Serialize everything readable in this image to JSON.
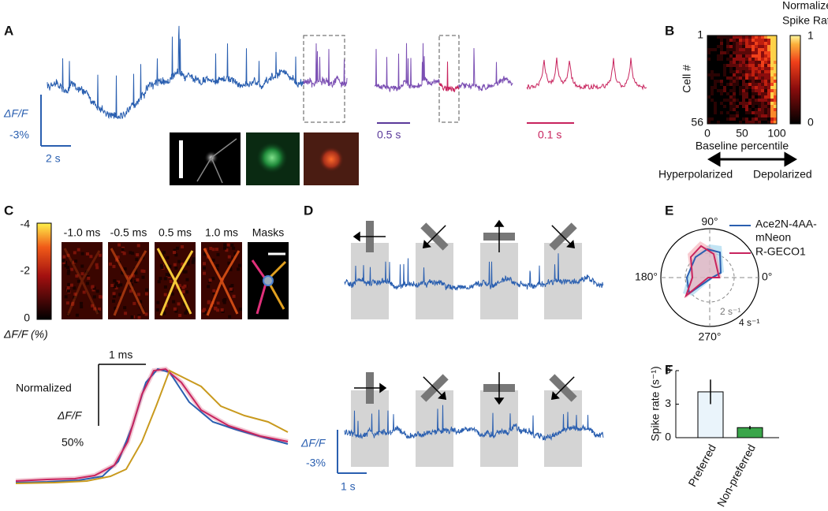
{
  "panels": {
    "A": {
      "label": "A",
      "scale_y": "ΔF/F",
      "scale_y_value": "-3%",
      "scale_x": "2 s",
      "scale_x_zoom": "0.5 s",
      "scale_x_zoom2": "0.1 s"
    },
    "B": {
      "label": "B",
      "colorbar_title": [
        "Normalized",
        "Spike Rate"
      ],
      "colorbar_ticks": [
        "1",
        "0"
      ],
      "y_label": "Cell #",
      "y_ticks": [
        "1",
        "56"
      ],
      "x_ticks": [
        "0",
        "50",
        "100"
      ],
      "x_label": "Baseline percentile",
      "left": "Hyperpolarized",
      "right": "Depolarized"
    },
    "C": {
      "label": "C",
      "times": [
        "-1.0 ms",
        "-0.5 ms",
        "0.5 ms",
        "1.0 ms"
      ],
      "masks": "Masks",
      "colorbar_ticks": [
        "-4",
        "-2",
        "0"
      ],
      "colorbar_label": "ΔF/F (%)",
      "time_scale": "1 ms",
      "norm_scale": [
        "Normalized",
        "ΔF/F",
        "50%"
      ]
    },
    "D": {
      "label": "D",
      "scale_y": "ΔF/F",
      "scale_y_value": "-3%",
      "scale_x": "1 s"
    },
    "E": {
      "label": "E",
      "legend": [
        "Ace2N-4AA-",
        "mNeon",
        "R-GECO1"
      ],
      "angles": [
        "90°",
        "180°",
        "0°",
        "270°"
      ],
      "radii": [
        "2 s⁻¹",
        "4 s⁻¹"
      ]
    },
    "F": {
      "label": "F"
    }
  },
  "chart_data": {
    "type": "bar",
    "y_label": "Spike rate (s⁻¹)",
    "categories": [
      "Preferred",
      "Non-preferred"
    ],
    "values": [
      4.1,
      0.9
    ],
    "errors": [
      1.1,
      0.15
    ],
    "colors": [
      "#eaf4fb",
      "#3aa64a"
    ],
    "ylim": [
      0,
      6
    ],
    "yticks": [
      0,
      3,
      6
    ]
  }
}
